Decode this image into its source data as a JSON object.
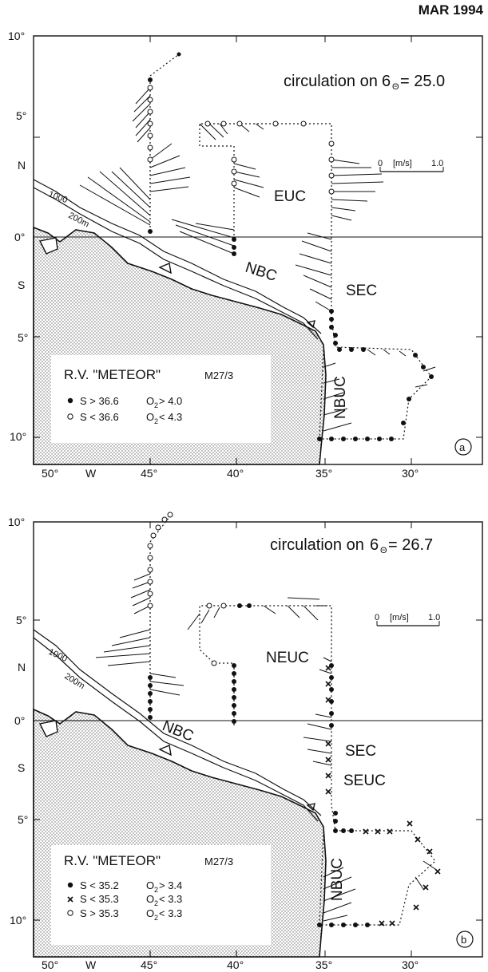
{
  "header": {
    "date": "MAR 1994"
  },
  "panels": [
    {
      "id": "a",
      "title": "circulation on",
      "sigma": "6",
      "sigma_sub": "Θ",
      "sigma_value": "= 25.0",
      "scale": {
        "zero": "0",
        "unit": "[m/s]",
        "max": "1.0"
      },
      "isobaths": [
        "1000",
        "200m"
      ],
      "lat_labels": [
        "10°",
        "5°",
        "N",
        "0°",
        "S",
        "5°",
        "10°"
      ],
      "lon_labels": [
        "50°",
        "W",
        "45°",
        "40°",
        "35°",
        "30°"
      ],
      "currents": [
        "EUC",
        "NBC",
        "SEC",
        "NBUC"
      ],
      "legend": {
        "vessel": "R.V. \"METEOR\"",
        "cruise": "M27/3",
        "entries": [
          {
            "symbol": "filled-circle",
            "sal": "S > 36.6",
            "oxy": "O",
            "oxy_sub": "2",
            "oxy_val": " > 4.0"
          },
          {
            "symbol": "open-circle",
            "sal": "S < 36.6",
            "oxy": "O",
            "oxy_sub": "2",
            "oxy_val": " < 4.3"
          }
        ]
      },
      "panel_label": "a"
    },
    {
      "id": "b",
      "title": "circulation on",
      "sigma": "6",
      "sigma_sub": "Θ",
      "sigma_value": "= 26.7",
      "scale": {
        "zero": "0",
        "unit": "[m/s]",
        "max": "1.0"
      },
      "isobaths": [
        "1000",
        "200m"
      ],
      "lat_labels": [
        "10°",
        "5°",
        "N",
        "0°",
        "S",
        "5°",
        "10°"
      ],
      "lon_labels": [
        "50°",
        "W",
        "45°",
        "40°",
        "35°",
        "30°"
      ],
      "currents": [
        "NEUC",
        "NBC",
        "SEC",
        "SEUC",
        "NBUC"
      ],
      "legend": {
        "vessel": "R.V. \"METEOR\"",
        "cruise": "M27/3",
        "entries": [
          {
            "symbol": "filled-circle",
            "sal": "S < 35.2",
            "oxy": "O",
            "oxy_sub": "2",
            "oxy_val": " > 3.4"
          },
          {
            "symbol": "cross",
            "sal": "S < 35.3",
            "oxy": "O",
            "oxy_sub": "2",
            "oxy_val": " < 3.3"
          },
          {
            "symbol": "open-circle",
            "sal": "S > 35.3",
            "oxy": "O",
            "oxy_sub": "2",
            "oxy_val": " < 3.3"
          }
        ]
      },
      "panel_label": "b"
    }
  ],
  "colors": {
    "land_stipple": "#d6d6d6",
    "ink": "#111111",
    "background": "#ffffff"
  },
  "map_domain": {
    "lon_range": [
      "51°W",
      "27°W"
    ],
    "lat_range": [
      "11.5°S",
      "10°N"
    ]
  }
}
